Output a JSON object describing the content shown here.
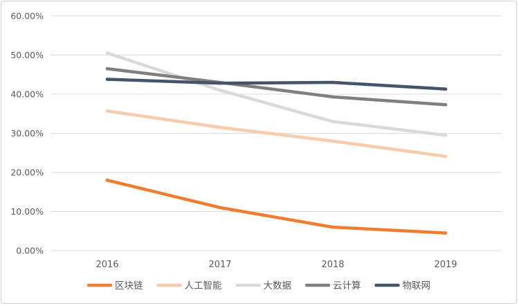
{
  "chart_data": {
    "type": "line",
    "title": "",
    "xlabel": "",
    "ylabel": "",
    "x": [
      "2016",
      "2017",
      "2018",
      "2019"
    ],
    "ylim": [
      0,
      0.6
    ],
    "yticks": [
      0,
      0.1,
      0.2,
      0.3,
      0.4,
      0.5,
      0.6
    ],
    "ytick_labels": [
      "0.00%",
      "10.00%",
      "20.00%",
      "30.00%",
      "40.00%",
      "50.00%",
      "60.00%"
    ],
    "grid": true,
    "legend_position": "bottom",
    "series": [
      {
        "name": "区块链",
        "color": "#ED7D31",
        "values": [
          0.18,
          0.11,
          0.06,
          0.045
        ]
      },
      {
        "name": "人工智能",
        "color": "#F8CBAD",
        "values": [
          0.357,
          0.315,
          0.28,
          0.241
        ]
      },
      {
        "name": "大数据",
        "color": "#D9D9D9",
        "values": [
          0.505,
          0.41,
          0.33,
          0.295
        ]
      },
      {
        "name": "云计算",
        "color": "#7F7F7F",
        "values": [
          0.465,
          0.43,
          0.393,
          0.373
        ]
      },
      {
        "name": "物联网",
        "color": "#44546A",
        "values": [
          0.438,
          0.428,
          0.43,
          0.413
        ]
      }
    ]
  }
}
